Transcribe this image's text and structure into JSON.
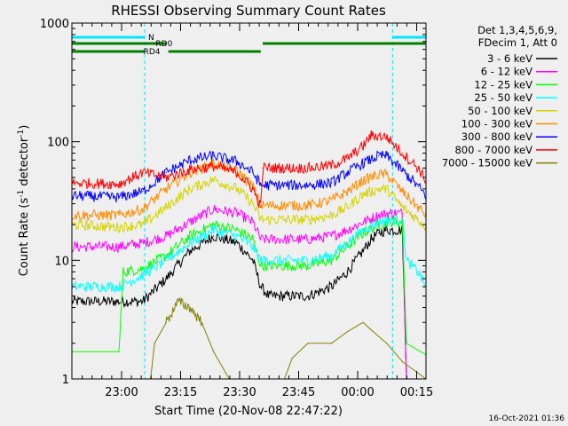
{
  "chart_data": {
    "type": "line",
    "title": "RHESSI Observing Summary Count Rates",
    "xlabel": "Start Time (20-Nov-08 22:47:22)",
    "ylabel_parts": {
      "pre": "Count Rate (s",
      "sup": "-1",
      "post": " detector",
      "sup2": "-1",
      "end": ")"
    },
    "x_unit": "minutes after 20-Nov-08 22:47:22",
    "x_range": [
      0,
      90
    ],
    "y_scale": "log",
    "ylim": [
      1,
      1000
    ],
    "x_tick_labels": [
      "23:00",
      "23:15",
      "23:30",
      "23:45",
      "00:00",
      "00:15"
    ],
    "x_tick_values": [
      12.63,
      27.63,
      42.63,
      57.63,
      72.63,
      87.63
    ],
    "y_tick_labels": [
      "1",
      "10",
      "100",
      "1000"
    ],
    "y_tick_values": [
      1,
      10,
      100,
      1000
    ],
    "legend_header": [
      "Det 1,3,4,5,6,9,",
      "FDecim 1, Att 0"
    ],
    "timestamp": "16-Oct-2021 01:36",
    "night_intervals": [
      [
        0,
        18.5
      ],
      [
        81.5,
        90
      ]
    ],
    "flag_labels": {
      "night": "N",
      "rd0": "RD0",
      "rd4": "RD4"
    },
    "rd0_segments": [
      [
        0,
        24
      ],
      [
        48.5,
        90
      ]
    ],
    "rd4_segments": [
      [
        0,
        18.5
      ],
      [
        24.5,
        48
      ]
    ],
    "series": [
      {
        "name": "3 - 6 keV",
        "color": "#000000",
        "points": [
          [
            13,
            4.5
          ],
          [
            18,
            4.5
          ],
          [
            24,
            7
          ],
          [
            30,
            12
          ],
          [
            36,
            16
          ],
          [
            42,
            14
          ],
          [
            46,
            10
          ],
          [
            48,
            6
          ],
          [
            50,
            5
          ],
          [
            60,
            5
          ],
          [
            66,
            6
          ],
          [
            70,
            8
          ],
          [
            74,
            12
          ],
          [
            76,
            15
          ],
          [
            78,
            17
          ],
          [
            80,
            18
          ],
          [
            84,
            18
          ],
          [
            85,
            1
          ],
          [
            90,
            1
          ]
        ]
      },
      {
        "name": "6 - 12 keV",
        "color": "#ff00ff",
        "points": [
          [
            12,
            13
          ],
          [
            18,
            14
          ],
          [
            24,
            16
          ],
          [
            30,
            21
          ],
          [
            36,
            27
          ],
          [
            42,
            25
          ],
          [
            46,
            21
          ],
          [
            48,
            15
          ],
          [
            60,
            15
          ],
          [
            66,
            16
          ],
          [
            70,
            18
          ],
          [
            74,
            21
          ],
          [
            78,
            24
          ],
          [
            81,
            25
          ],
          [
            84,
            25
          ],
          [
            85,
            1
          ],
          [
            90,
            1
          ]
        ]
      },
      {
        "name": "12 - 25 keV",
        "color": "#00ff00",
        "points": [
          [
            0,
            1.7
          ],
          [
            12,
            1.7
          ],
          [
            13,
            8
          ],
          [
            18,
            8.5
          ],
          [
            24,
            11
          ],
          [
            30,
            16
          ],
          [
            36,
            20
          ],
          [
            42,
            18
          ],
          [
            46,
            15
          ],
          [
            48,
            9
          ],
          [
            60,
            9
          ],
          [
            66,
            10
          ],
          [
            70,
            13
          ],
          [
            74,
            17
          ],
          [
            78,
            20
          ],
          [
            81,
            21
          ],
          [
            84,
            21
          ],
          [
            85,
            2
          ],
          [
            90,
            1.6
          ]
        ]
      },
      {
        "name": "25 - 50 keV",
        "color": "#00ffff",
        "points": [
          [
            0,
            6
          ],
          [
            12,
            6
          ],
          [
            18,
            7.5
          ],
          [
            24,
            10
          ],
          [
            30,
            14
          ],
          [
            36,
            18
          ],
          [
            42,
            16
          ],
          [
            46,
            13
          ],
          [
            48,
            10
          ],
          [
            60,
            10
          ],
          [
            66,
            11
          ],
          [
            70,
            14
          ],
          [
            74,
            18
          ],
          [
            78,
            21
          ],
          [
            81,
            22
          ],
          [
            84,
            22
          ],
          [
            85,
            10
          ],
          [
            88,
            8
          ],
          [
            90,
            6
          ]
        ]
      },
      {
        "name": "50 - 100 keV",
        "color": "#d4d400",
        "points": [
          [
            0,
            20
          ],
          [
            12,
            19
          ],
          [
            18,
            20
          ],
          [
            24,
            28
          ],
          [
            30,
            40
          ],
          [
            36,
            48
          ],
          [
            42,
            40
          ],
          [
            46,
            30
          ],
          [
            48,
            22
          ],
          [
            60,
            22
          ],
          [
            66,
            24
          ],
          [
            70,
            28
          ],
          [
            74,
            36
          ],
          [
            78,
            40
          ],
          [
            80,
            40
          ],
          [
            84,
            28
          ],
          [
            88,
            22
          ],
          [
            90,
            19
          ]
        ]
      },
      {
        "name": "100 - 300 keV",
        "color": "#ff8c00",
        "points": [
          [
            0,
            24
          ],
          [
            12,
            24
          ],
          [
            18,
            27
          ],
          [
            24,
            40
          ],
          [
            30,
            55
          ],
          [
            36,
            65
          ],
          [
            42,
            57
          ],
          [
            46,
            42
          ],
          [
            48,
            29
          ],
          [
            60,
            29
          ],
          [
            66,
            32
          ],
          [
            70,
            38
          ],
          [
            74,
            47
          ],
          [
            78,
            53
          ],
          [
            80,
            53
          ],
          [
            84,
            38
          ],
          [
            88,
            28
          ],
          [
            90,
            24
          ]
        ]
      },
      {
        "name": "300 - 800 keV",
        "color": "#0000ff",
        "points": [
          [
            0,
            35
          ],
          [
            12,
            34
          ],
          [
            18,
            38
          ],
          [
            24,
            55
          ],
          [
            30,
            70
          ],
          [
            36,
            76
          ],
          [
            42,
            68
          ],
          [
            46,
            55
          ],
          [
            48,
            43
          ],
          [
            60,
            43
          ],
          [
            66,
            45
          ],
          [
            70,
            55
          ],
          [
            74,
            66
          ],
          [
            78,
            76
          ],
          [
            80,
            76
          ],
          [
            84,
            57
          ],
          [
            88,
            42
          ],
          [
            90,
            35
          ]
        ]
      },
      {
        "name": "800 - 7000 keV",
        "color": "#ff0000",
        "points": [
          [
            0,
            45
          ],
          [
            12,
            44
          ],
          [
            18,
            55
          ],
          [
            24,
            50
          ],
          [
            30,
            58
          ],
          [
            36,
            62
          ],
          [
            42,
            55
          ],
          [
            46,
            40
          ],
          [
            48,
            28
          ],
          [
            48.5,
            60
          ],
          [
            60,
            60
          ],
          [
            66,
            63
          ],
          [
            70,
            72
          ],
          [
            74,
            92
          ],
          [
            76,
            113
          ],
          [
            80,
            110
          ],
          [
            84,
            80
          ],
          [
            88,
            60
          ],
          [
            90,
            47
          ]
        ]
      },
      {
        "name": "7000 - 15000 keV",
        "color": "#808000",
        "points": [
          [
            0,
            1
          ],
          [
            20,
            1
          ],
          [
            21,
            2
          ],
          [
            24,
            3
          ],
          [
            27,
            4.5
          ],
          [
            30,
            4
          ],
          [
            33,
            3
          ],
          [
            36,
            1.7
          ],
          [
            40,
            1
          ],
          [
            54,
            1
          ],
          [
            56,
            1.5
          ],
          [
            60,
            2
          ],
          [
            66,
            2
          ],
          [
            70,
            2.5
          ],
          [
            74,
            3
          ],
          [
            76,
            2.6
          ],
          [
            80,
            2
          ],
          [
            84,
            1.4
          ],
          [
            90,
            1
          ]
        ]
      }
    ]
  }
}
